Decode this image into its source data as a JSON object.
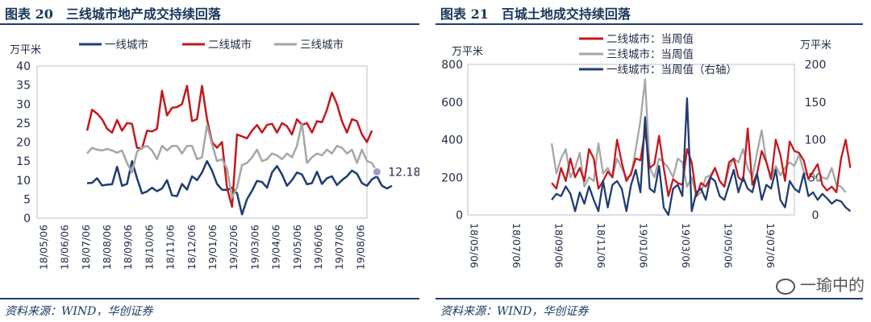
{
  "left_panel": {
    "title": "图表 20　三线城市地产成交持续回落",
    "source": "资料来源：WIND，华创证券"
  },
  "right_panel": {
    "title": "图表 21　百城土地成交持续回落",
    "source": "资料来源：WIND，华创证券"
  },
  "watermark": "一瑜中的",
  "colors": {
    "navy": "#1f3c73",
    "red": "#c3181d",
    "gray": "#a6a6a6",
    "marker": "#a09ac8"
  },
  "chart_data": [
    {
      "type": "line",
      "unit_label": "万平米",
      "ylim": [
        0,
        40
      ],
      "yticks": [
        "0",
        "5",
        "10",
        "15",
        "20",
        "25",
        "30",
        "35",
        "40"
      ],
      "x_tick_labels": [
        "18/05/06",
        "18/06/06",
        "18/07/06",
        "18/08/06",
        "18/09/06",
        "18/10/06",
        "18/11/06",
        "18/12/06",
        "19/01/06",
        "19/02/06",
        "19/03/06",
        "19/04/06",
        "19/05/06",
        "19/06/06",
        "19/07/06",
        "19/08/06"
      ],
      "x_range": [
        0,
        66
      ],
      "x_start": 10,
      "legend": [
        "一线城市",
        "二线城市",
        "三线城市"
      ],
      "legend_position": "top",
      "end_label": "12.18",
      "series": [
        {
          "name": "一线城市",
          "color": "#1f3c73",
          "values": [
            9.2,
            9.3,
            10.5,
            8.6,
            8.8,
            8.9,
            13.5,
            8.5,
            9,
            15,
            10.5,
            6.5,
            7,
            8,
            7.1,
            7.8,
            10,
            6,
            5.8,
            9,
            7.5,
            11,
            10,
            12,
            15,
            12.5,
            9,
            7.5,
            7.4,
            8,
            6.5,
            1,
            5,
            7.2,
            9.8,
            9.5,
            8,
            12,
            13.7,
            11.5,
            8.5,
            10,
            12,
            11.5,
            8.9,
            9.2,
            12.2,
            9,
            10.5,
            11,
            8.7,
            10,
            11,
            12.5,
            11.7,
            9.2,
            8.5,
            10.2,
            11,
            8.5,
            7.8,
            8.5
          ]
        },
        {
          "name": "二线城市",
          "color": "#c3181d",
          "values": [
            23,
            28.5,
            27.5,
            26,
            23.5,
            22.5,
            25.8,
            23,
            25,
            24.8,
            18.5,
            18.3,
            23,
            22.8,
            23.5,
            33.5,
            27,
            29,
            29.2,
            30,
            34.8,
            25.5,
            26,
            34.8,
            26,
            20,
            18.5,
            20,
            8,
            3,
            22,
            21.5,
            21,
            23,
            24.5,
            22.5,
            24.5,
            24.8,
            22.5,
            25,
            24.2,
            22,
            26,
            24.5,
            25,
            22.5,
            25.5,
            25.2,
            28.5,
            33,
            30,
            25.5,
            22.5,
            26,
            25.5,
            22,
            20,
            23
          ]
        },
        {
          "name": "三线城市",
          "color": "#a6a6a6",
          "values": [
            17,
            18.5,
            18,
            17.8,
            18.2,
            17.8,
            17.2,
            17.8,
            14.5,
            12,
            17.5,
            18.5,
            19,
            17.8,
            15.5,
            19,
            17.8,
            19,
            19,
            17,
            19,
            19,
            15.5,
            16,
            24.5,
            19.5,
            15,
            15.5,
            13,
            5.5,
            8,
            14,
            14.5,
            16,
            18,
            15,
            15.5,
            17,
            16.5,
            15.5,
            17,
            16,
            19,
            25,
            14.5,
            16,
            17,
            16.5,
            18,
            17,
            19,
            18.5,
            17,
            18,
            14.5,
            18,
            15,
            14.5,
            12.18
          ]
        }
      ]
    },
    {
      "type": "line",
      "unit_label_left": "万平米",
      "unit_label_right": "万平米",
      "ylim_left": [
        0,
        800
      ],
      "ylim_right": [
        0,
        200
      ],
      "yticks_left": [
        "0",
        "200",
        "400",
        "600",
        "800"
      ],
      "yticks_right": [
        "0",
        "50",
        "100",
        "150",
        "200"
      ],
      "x_tick_labels": [
        "18/05/06",
        "18/07/06",
        "18/09/06",
        "18/11/06",
        "19/01/06",
        "19/03/06",
        "19/05/06",
        "19/07/06"
      ],
      "x_range": [
        0,
        70
      ],
      "x_start": 18,
      "legend": [
        "二线城市：当周值",
        "三线城市：当周值",
        "一线城市：当周值（右轴）"
      ],
      "legend_position": "top",
      "series": [
        {
          "name": "二线城市：当周值",
          "color": "#c3181d",
          "axis": "left",
          "values": [
            170,
            140,
            250,
            180,
            300,
            200,
            250,
            180,
            350,
            300,
            140,
            180,
            230,
            200,
            400,
            280,
            180,
            220,
            300,
            290,
            450,
            250,
            270,
            420,
            250,
            100,
            190,
            170,
            160,
            350,
            280,
            100,
            170,
            150,
            200,
            250,
            180,
            150,
            280,
            300,
            200,
            180,
            460,
            160,
            220,
            340,
            280,
            190,
            400,
            320,
            180,
            390,
            340,
            330,
            290,
            190,
            230,
            270,
            160,
            130,
            150,
            120,
            300,
            400,
            250
          ]
        },
        {
          "name": "三线城市：当周值",
          "color": "#a6a6a6",
          "axis": "left",
          "values": [
            380,
            220,
            300,
            350,
            200,
            250,
            330,
            150,
            200,
            180,
            380,
            220,
            250,
            200,
            300,
            250,
            200,
            210,
            350,
            500,
            720,
            250,
            200,
            300,
            280,
            250,
            200,
            300,
            280,
            150,
            200,
            100,
            120,
            200,
            210,
            250,
            180,
            150,
            250,
            300,
            280,
            350,
            250,
            200,
            330,
            450,
            280,
            200,
            260,
            210,
            250,
            280,
            260,
            320,
            230,
            200,
            220,
            180,
            200,
            190,
            250,
            160,
            150,
            120
          ]
        },
        {
          "name": "一线城市：当周值（右轴）",
          "color": "#1f3c73",
          "axis": "right",
          "values": [
            20,
            28,
            25,
            38,
            28,
            5,
            30,
            15,
            38,
            20,
            5,
            45,
            10,
            40,
            45,
            35,
            5,
            40,
            60,
            30,
            130,
            35,
            30,
            65,
            10,
            0,
            35,
            40,
            25,
            155,
            5,
            30,
            35,
            20,
            50,
            45,
            25,
            20,
            40,
            60,
            30,
            50,
            35,
            30,
            55,
            20,
            40,
            35,
            60,
            20,
            10,
            45,
            35,
            30,
            55,
            25,
            30,
            20,
            28,
            22,
            15,
            20,
            18,
            10,
            5
          ]
        }
      ]
    }
  ]
}
